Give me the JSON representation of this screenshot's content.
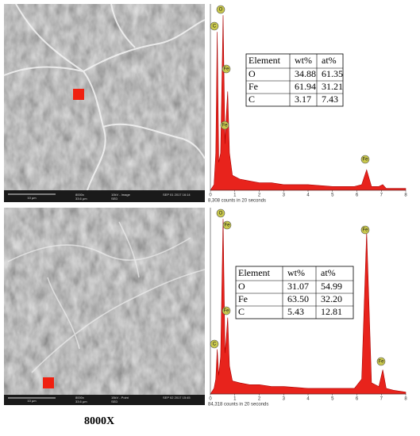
{
  "sem_images": [
    {
      "scale": "10 µm",
      "magnification": "8000x",
      "field": "33.6 µm",
      "mode": "10kV - Image",
      "date": "SEP 01 2017 16:14",
      "detector": "SED"
    },
    {
      "scale": "10 µm",
      "magnification": "8000x",
      "field": "33.6 µm",
      "mode": "15kV - Point",
      "date": "SEP 02 2017 15:45",
      "detector": "SED"
    }
  ],
  "caption": "8000X",
  "chart_data": [
    {
      "type": "area",
      "color": "#e8231c",
      "x": [
        0,
        0.15,
        0.22,
        0.28,
        0.34,
        0.42,
        0.52,
        0.6,
        0.65,
        0.71,
        0.78,
        0.9,
        1.2,
        1.6,
        2,
        2.5,
        3,
        4,
        5,
        5.9,
        6.2,
        6.4,
        6.6,
        6.9,
        7.06,
        7.2,
        7.5,
        8
      ],
      "values": [
        0,
        3,
        20,
        85,
        15,
        20,
        94,
        25,
        40,
        53,
        20,
        8,
        6,
        5,
        4,
        4,
        3,
        3,
        2,
        2,
        3,
        11,
        2,
        2,
        3,
        1,
        1,
        1
      ],
      "xlim": [
        0,
        8
      ],
      "xticks": [
        0,
        1,
        2,
        3,
        4,
        5,
        6,
        7,
        8
      ],
      "ylim": [
        0,
        100
      ],
      "footer": "8,308 counts in 20 seconds",
      "peak_labels": [
        "C",
        "O",
        "Fe",
        "Fe",
        "Fe"
      ],
      "table": {
        "header": [
          "Element",
          "wt%",
          "at%"
        ],
        "rows": [
          [
            "O",
            "34.88",
            "61.35"
          ],
          [
            "Fe",
            "61.94",
            "31.21"
          ],
          [
            "C",
            "3.17",
            "7.43"
          ]
        ]
      }
    },
    {
      "type": "area",
      "color": "#e8231c",
      "x": [
        0,
        0.15,
        0.22,
        0.28,
        0.34,
        0.42,
        0.52,
        0.6,
        0.65,
        0.71,
        0.78,
        0.9,
        1.2,
        1.6,
        2,
        2.5,
        3,
        4,
        5,
        5.9,
        6.2,
        6.4,
        6.6,
        6.9,
        7.06,
        7.2,
        7.5,
        8
      ],
      "values": [
        0,
        3,
        8,
        24,
        10,
        20,
        94,
        22,
        30,
        41,
        15,
        7,
        6,
        5,
        5,
        4,
        4,
        3,
        3,
        3,
        8,
        87,
        6,
        4,
        13,
        3,
        2,
        1
      ],
      "xlim": [
        0,
        8
      ],
      "xticks": [
        0,
        1,
        2,
        3,
        4,
        5,
        6,
        7,
        8
      ],
      "ylim": [
        0,
        100
      ],
      "footer": "84,318 counts in 20 seconds",
      "peak_labels": [
        "O",
        "Fe",
        "Fe",
        "C",
        "Fe",
        "Fe"
      ],
      "table": {
        "header": [
          "Element",
          "wt%",
          "at%"
        ],
        "rows": [
          [
            "O",
            "31.07",
            "54.99"
          ],
          [
            "Fe",
            "63.50",
            "32.20"
          ],
          [
            "C",
            "5.43",
            "12.81"
          ]
        ]
      }
    }
  ]
}
